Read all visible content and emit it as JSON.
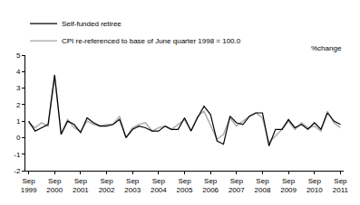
{
  "chart_data": {
    "type": "line",
    "y_label": "%change",
    "categories": [
      "Sep 1999",
      null,
      null,
      null,
      "Sep 2000",
      null,
      null,
      null,
      "Sep 2001",
      null,
      null,
      null,
      "Sep 2002",
      null,
      null,
      null,
      "Sep 2003",
      null,
      null,
      null,
      "Sep 2004",
      null,
      null,
      null,
      "Sep 2005",
      null,
      null,
      null,
      "Sep 2006",
      null,
      null,
      null,
      "Sep 2007",
      null,
      null,
      null,
      "Sep 2008",
      null,
      null,
      null,
      "Sep 2009",
      null,
      null,
      null,
      "Sep 2010",
      null,
      null,
      null,
      "Sep 2011"
    ],
    "series": [
      {
        "name": "Self-funded retiree",
        "color": "#000000",
        "values": [
          1.0,
          0.4,
          0.6,
          0.8,
          3.8,
          0.2,
          1.0,
          0.8,
          0.3,
          1.2,
          0.9,
          0.7,
          0.7,
          0.8,
          1.1,
          0.0,
          0.5,
          0.7,
          0.6,
          0.4,
          0.4,
          0.7,
          0.5,
          0.5,
          1.2,
          0.4,
          1.2,
          1.9,
          1.4,
          -0.2,
          -0.4,
          1.3,
          0.9,
          0.8,
          1.3,
          1.5,
          1.5,
          -0.5,
          0.5,
          0.5,
          1.1,
          0.6,
          0.8,
          0.5,
          0.9,
          0.5,
          1.5,
          1.0,
          0.8
        ]
      },
      {
        "name": "CPI re-referenced to base of June quarter 1998 = 100.0",
        "color": "#b0b0b0",
        "values": [
          0.9,
          0.6,
          0.9,
          0.7,
          3.7,
          0.2,
          1.1,
          0.6,
          0.4,
          1.0,
          0.8,
          0.7,
          0.8,
          0.8,
          1.3,
          0.0,
          0.6,
          0.8,
          0.9,
          0.4,
          0.6,
          0.7,
          0.5,
          0.8,
          1.1,
          0.4,
          1.3,
          1.6,
          0.7,
          -0.1,
          0.2,
          1.2,
          0.7,
          1.0,
          1.3,
          1.5,
          1.2,
          -0.3,
          0.1,
          0.5,
          1.0,
          0.5,
          0.9,
          0.6,
          0.7,
          0.4,
          1.6,
          0.9,
          0.6
        ]
      }
    ],
    "ylim": [
      -2,
      5
    ],
    "yticks": [
      -2,
      -1,
      0,
      1,
      2,
      3,
      4,
      5
    ],
    "grid": false,
    "legend": "top left"
  }
}
